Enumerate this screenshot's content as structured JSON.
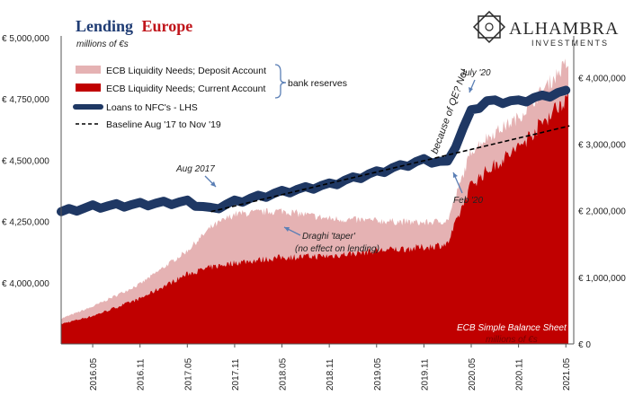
{
  "title": {
    "part1": "Lending",
    "part2": "Europe"
  },
  "logo": {
    "name": "ALHAMBRA",
    "sub": "INVESTMENTS"
  },
  "colors": {
    "deposit": "#e5b2b3",
    "current": "#c00000",
    "loans": "#1f3864",
    "baseline": "#000000",
    "title_blue": "#1f3c74",
    "title_red": "#c0151b"
  },
  "chart_data": {
    "type": "area",
    "title": "Lending Europe",
    "left_axis": {
      "unit_label": "millions of €s",
      "ticks": [
        "€ 5,000,000",
        "€ 4,750,000",
        "€ 4,500,000",
        "€ 4,250,000",
        "€ 4,000,000"
      ],
      "range": [
        3750000,
        5000000
      ]
    },
    "right_axis": {
      "unit_label": "millions of €s",
      "ticks": [
        "€ 4,000,000",
        "€ 3,000,000",
        "€ 2,000,000",
        "€ 1,000,000",
        "€ 0"
      ],
      "range": [
        0,
        4600000
      ]
    },
    "x_ticks": [
      "2016.05",
      "2016.11",
      "2017.05",
      "2017.11",
      "2018.05",
      "2018.11",
      "2019.05",
      "2019.11",
      "2020.05",
      "2020.11",
      "2021.05"
    ],
    "legend": {
      "items": [
        "ECB Liquidity Needs; Deposit Account",
        "ECB Liquidity Needs; Current Account",
        "Loans to NFC's - LHS",
        "Baseline Aug '17 to Nov '19"
      ],
      "bracket_label": "bank reserves",
      "placement": "top-left"
    },
    "x": [
      "2016.01",
      "2016.05",
      "2016.11",
      "2017.05",
      "2017.08",
      "2017.11",
      "2018.05",
      "2018.11",
      "2019.05",
      "2019.11",
      "2020.02",
      "2020.05",
      "2020.07",
      "2020.11",
      "2021.05"
    ],
    "series": [
      {
        "name": "ECB Liquidity Needs; Current Account",
        "axis": "right",
        "values": [
          300000,
          420000,
          680000,
          1050000,
          1150000,
          1220000,
          1300000,
          1320000,
          1400000,
          1450000,
          1500000,
          2400000,
          2600000,
          2950000,
          3700000
        ]
      },
      {
        "name": "ECB Liquidity Needs; Deposit Account",
        "axis": "right",
        "values": [
          380000,
          560000,
          900000,
          1400000,
          1750000,
          1950000,
          2000000,
          1880000,
          1850000,
          1820000,
          1850000,
          2900000,
          3100000,
          3400000,
          4200000
        ]
      },
      {
        "name": "Loans to NFC's - LHS",
        "axis": "left",
        "values": [
          4290000,
          4310000,
          4320000,
          4330000,
          4300000,
          4330000,
          4370000,
          4400000,
          4450000,
          4500000,
          4490000,
          4700000,
          4740000,
          4740000,
          4780000
        ]
      },
      {
        "name": "Baseline Aug '17 to Nov '19",
        "axis": "left",
        "x": [
          "2017.08",
          "2021.05"
        ],
        "values": [
          4290000,
          4640000
        ]
      }
    ],
    "annotations": [
      {
        "text": "Aug 2017"
      },
      {
        "text": "July '20"
      },
      {
        "text": "Feb '20"
      },
      {
        "text": "because of QE? No!"
      },
      {
        "text": "Draghi 'taper'"
      },
      {
        "text": "(no effect on lending)"
      },
      {
        "text": "ECB Simple Balance Sheet"
      },
      {
        "text": "millions of €s"
      }
    ],
    "grid": false
  }
}
